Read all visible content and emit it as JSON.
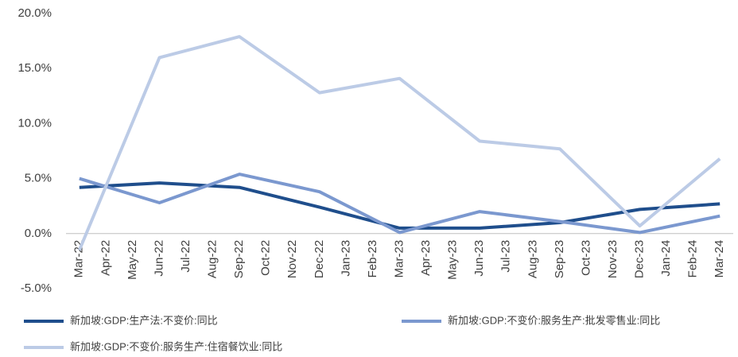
{
  "chart_data": {
    "type": "line",
    "categories": [
      "Mar-22",
      "Apr-22",
      "May-22",
      "Jun-22",
      "Jul-22",
      "Aug-22",
      "Sep-22",
      "Oct-22",
      "Nov-22",
      "Dec-22",
      "Jan-23",
      "Feb-23",
      "Mar-23",
      "Apr-23",
      "May-23",
      "Jun-23",
      "Jul-23",
      "Aug-23",
      "Sep-23",
      "Oct-23",
      "Nov-23",
      "Dec-23",
      "Jan-24",
      "Feb-24",
      "Mar-24"
    ],
    "series": [
      {
        "name": "新加坡:GDP:生产法:不变价:同比",
        "color": "#1f4e8c",
        "values": [
          4.2,
          null,
          null,
          4.6,
          null,
          null,
          4.2,
          null,
          null,
          2.4,
          null,
          null,
          0.5,
          null,
          null,
          0.5,
          null,
          null,
          1.0,
          null,
          null,
          2.2,
          null,
          null,
          2.7
        ]
      },
      {
        "name": "新加坡:GDP:不变价:服务生产:批发零售业:同比",
        "color": "#7b98cf",
        "values": [
          5.0,
          null,
          null,
          2.8,
          null,
          null,
          5.4,
          null,
          null,
          3.8,
          null,
          null,
          0.1,
          null,
          null,
          2.0,
          null,
          null,
          1.1,
          null,
          null,
          0.1,
          null,
          null,
          1.6
        ]
      },
      {
        "name": "新加坡:GDP:不变价:服务生产:住宿餐饮业:同比",
        "color": "#bccbe6",
        "values": [
          -1.5,
          null,
          null,
          16.0,
          null,
          null,
          17.9,
          null,
          null,
          12.8,
          null,
          null,
          14.1,
          null,
          null,
          8.4,
          null,
          null,
          7.7,
          null,
          null,
          0.7,
          null,
          null,
          6.8
        ]
      }
    ],
    "connect_gaps": true,
    "ylim": [
      -5,
      20
    ],
    "yticks": [
      {
        "value": -5,
        "label": "-5.0%"
      },
      {
        "value": 0,
        "label": "0.0%"
      },
      {
        "value": 5,
        "label": "5.0%"
      },
      {
        "value": 10,
        "label": "10.0%"
      },
      {
        "value": 15,
        "label": "15.0%"
      },
      {
        "value": 20,
        "label": "20.0%"
      }
    ],
    "grid": false
  }
}
